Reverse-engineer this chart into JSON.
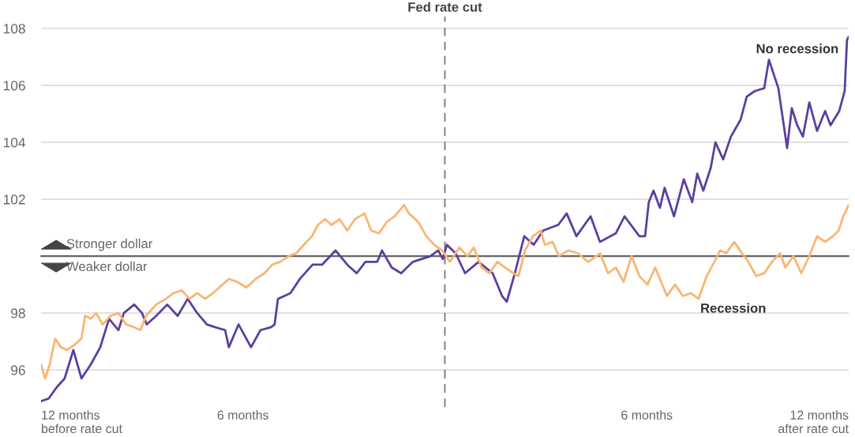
{
  "chart_data": {
    "type": "line",
    "xlim": [
      -12,
      12
    ],
    "xticks": [
      {
        "value": -12,
        "label": "12 months\nbefore rate cut"
      },
      {
        "value": -6,
        "label": "6 months"
      },
      {
        "value": 6,
        "label": "6 months"
      },
      {
        "value": 12,
        "label": "12 months\nafter rate cut"
      }
    ],
    "ylim": [
      94.7,
      109
    ],
    "yticks": [
      96,
      98,
      102,
      104,
      106,
      108
    ],
    "grid": "y",
    "legend": false,
    "line_style": "solid",
    "series": [
      {
        "name": "No recession",
        "color": "#5b3f9e",
        "x": [
          -12.0,
          -11.77,
          -11.53,
          -11.3,
          -11.04,
          -10.8,
          -10.52,
          -10.24,
          -9.98,
          -9.7,
          -9.54,
          -9.23,
          -9.0,
          -8.86,
          -8.58,
          -8.25,
          -7.94,
          -7.64,
          -7.36,
          -7.07,
          -6.82,
          -6.53,
          -6.42,
          -6.13,
          -5.76,
          -5.48,
          -5.17,
          -5.06,
          -4.96,
          -4.59,
          -4.31,
          -3.93,
          -3.65,
          -3.25,
          -2.9,
          -2.62,
          -2.36,
          -2.01,
          -1.87,
          -1.58,
          -1.3,
          -0.95,
          -0.43,
          -0.2,
          -0.06,
          0.06,
          0.32,
          0.6,
          1.0,
          1.42,
          1.7,
          1.84,
          2.08,
          2.36,
          2.64,
          2.92,
          3.37,
          3.62,
          3.91,
          4.33,
          4.61,
          5.08,
          5.34,
          5.78,
          5.95,
          6.06,
          6.2,
          6.39,
          6.53,
          6.81,
          7.1,
          7.35,
          7.5,
          7.68,
          7.9,
          8.04,
          8.27,
          8.5,
          8.79,
          8.97,
          9.21,
          9.49,
          9.63,
          9.91,
          10.17,
          10.31,
          10.47,
          10.64,
          10.83,
          11.06,
          11.3,
          11.46,
          11.72,
          11.88,
          11.95,
          12.0
        ],
        "values": [
          94.9,
          95.0,
          95.4,
          95.7,
          96.7,
          95.7,
          96.2,
          96.8,
          97.8,
          97.4,
          98.0,
          98.3,
          98.0,
          97.6,
          97.9,
          98.3,
          97.9,
          98.5,
          98.0,
          97.6,
          97.5,
          97.4,
          96.8,
          97.6,
          96.8,
          97.4,
          97.5,
          97.6,
          98.5,
          98.7,
          99.2,
          99.7,
          99.7,
          100.2,
          99.7,
          99.4,
          99.8,
          99.8,
          100.2,
          99.6,
          99.4,
          99.8,
          100.0,
          100.2,
          99.9,
          100.4,
          100.1,
          99.4,
          99.8,
          99.4,
          98.6,
          98.4,
          99.4,
          100.7,
          100.4,
          100.9,
          101.1,
          101.5,
          100.7,
          101.4,
          100.5,
          100.8,
          101.4,
          100.7,
          100.7,
          101.9,
          102.3,
          101.7,
          102.4,
          101.4,
          102.7,
          101.9,
          102.9,
          102.3,
          103.1,
          104.0,
          103.4,
          104.2,
          104.8,
          105.6,
          105.8,
          105.9,
          106.9,
          105.9,
          103.8,
          105.2,
          104.6,
          104.2,
          105.4,
          104.4,
          105.1,
          104.6,
          105.1,
          105.8,
          107.6,
          107.7
        ]
      },
      {
        "name": "Recession",
        "color": "#f9b572",
        "x": [
          -12.0,
          -11.88,
          -11.74,
          -11.58,
          -11.41,
          -11.23,
          -10.99,
          -10.8,
          -10.69,
          -10.52,
          -10.36,
          -10.17,
          -9.94,
          -9.7,
          -9.47,
          -9.23,
          -9.05,
          -8.88,
          -8.58,
          -8.29,
          -8.06,
          -7.82,
          -7.59,
          -7.36,
          -7.12,
          -6.89,
          -6.61,
          -6.42,
          -6.18,
          -5.9,
          -5.62,
          -5.36,
          -5.13,
          -4.89,
          -4.64,
          -4.42,
          -4.19,
          -3.95,
          -3.77,
          -3.56,
          -3.37,
          -3.13,
          -2.9,
          -2.67,
          -2.39,
          -2.19,
          -1.96,
          -1.73,
          -1.49,
          -1.21,
          -1.07,
          -0.79,
          -0.55,
          -0.32,
          -0.08,
          0.15,
          0.43,
          0.67,
          0.86,
          1.09,
          1.32,
          1.56,
          1.79,
          2.03,
          2.19,
          2.38,
          2.62,
          2.85,
          2.97,
          3.2,
          3.39,
          3.67,
          3.95,
          4.26,
          4.61,
          4.85,
          5.08,
          5.31,
          5.55,
          5.78,
          6.02,
          6.25,
          6.6,
          6.84,
          7.07,
          7.31,
          7.54,
          7.78,
          8.01,
          8.18,
          8.36,
          8.6,
          8.83,
          9.02,
          9.25,
          9.49,
          9.72,
          9.96,
          10.12,
          10.36,
          10.59,
          10.83,
          11.06,
          11.3,
          11.53,
          11.7,
          11.84,
          12.0
        ],
        "values": [
          96.2,
          95.7,
          96.2,
          97.1,
          96.8,
          96.7,
          96.9,
          97.1,
          97.9,
          97.8,
          98.0,
          97.6,
          97.9,
          98.0,
          97.6,
          97.5,
          97.4,
          97.9,
          98.3,
          98.5,
          98.7,
          98.8,
          98.5,
          98.7,
          98.5,
          98.7,
          99.0,
          99.2,
          99.1,
          98.9,
          99.2,
          99.4,
          99.7,
          99.8,
          100.0,
          100.1,
          100.4,
          100.7,
          101.1,
          101.3,
          101.1,
          101.3,
          100.9,
          101.3,
          101.5,
          100.9,
          100.8,
          101.2,
          101.4,
          101.8,
          101.5,
          101.2,
          100.7,
          100.4,
          100.2,
          99.8,
          100.3,
          100.0,
          100.3,
          99.6,
          99.4,
          99.8,
          99.6,
          99.4,
          99.3,
          100.2,
          100.7,
          100.9,
          100.4,
          100.5,
          100.0,
          100.2,
          100.1,
          99.8,
          100.1,
          99.4,
          99.6,
          99.1,
          100.0,
          99.3,
          99.0,
          99.6,
          98.6,
          99.0,
          98.6,
          98.7,
          98.5,
          99.3,
          99.8,
          100.2,
          100.1,
          100.5,
          100.1,
          99.8,
          99.3,
          99.4,
          99.8,
          100.1,
          99.6,
          100.0,
          99.4,
          100.0,
          100.7,
          100.5,
          100.7,
          100.9,
          101.4,
          101.8
        ]
      }
    ],
    "ref_lines": [
      {
        "axis": "x",
        "value": 0,
        "label": "Fed rate cut",
        "color": "#777777",
        "line_style": "dashed"
      },
      {
        "axis": "y",
        "value": 100,
        "color": "#666666",
        "line_style": "solid"
      }
    ],
    "annotations": [
      "Stronger dollar",
      "Weaker dollar"
    ]
  }
}
